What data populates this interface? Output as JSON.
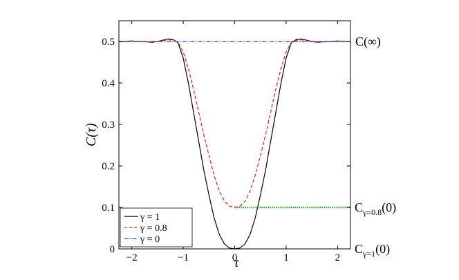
{
  "chart_data": {
    "type": "line",
    "xlabel": "τ",
    "ylabel": "C(τ)",
    "xlim": [
      -2.25,
      2.25
    ],
    "ylim": [
      0,
      0.55
    ],
    "xticks": [
      -2,
      -1,
      0,
      1,
      2
    ],
    "yticks": [
      0,
      0.1,
      0.2,
      0.3,
      0.4,
      0.5
    ],
    "grid": false,
    "legend_position": "bottom-left",
    "legend": [
      "γ = 1",
      "γ = 0.8",
      "γ = 0"
    ],
    "annotations": {
      "top": "C(∞)",
      "mid_main": "C",
      "mid_sub": "γ=0.8",
      "mid_tail": "(0)",
      "bottom_main": "C",
      "bottom_sub": "γ=1",
      "bottom_tail": "(0)"
    },
    "series": [
      {
        "name": "γ = 1",
        "style": "solid",
        "color": "#000000",
        "x": [
          -2.25,
          -2.0,
          -1.8,
          -1.7,
          -1.6,
          -1.5,
          -1.4,
          -1.3,
          -1.2,
          -1.1,
          -1.0,
          -0.9,
          -0.8,
          -0.7,
          -0.6,
          -0.5,
          -0.4,
          -0.3,
          -0.2,
          -0.1,
          0.0,
          0.1,
          0.2,
          0.3,
          0.4,
          0.5,
          0.6,
          0.7,
          0.8,
          0.9,
          1.0,
          1.1,
          1.2,
          1.3,
          1.4,
          1.5,
          1.6,
          1.7,
          1.8,
          2.0,
          2.25
        ],
        "y": [
          0.5,
          0.501,
          0.5,
          0.499,
          0.498,
          0.5,
          0.503,
          0.506,
          0.505,
          0.497,
          0.46,
          0.4,
          0.33,
          0.26,
          0.19,
          0.13,
          0.075,
          0.035,
          0.012,
          0.002,
          0.0,
          0.002,
          0.012,
          0.035,
          0.075,
          0.13,
          0.19,
          0.26,
          0.33,
          0.4,
          0.46,
          0.497,
          0.505,
          0.506,
          0.503,
          0.5,
          0.498,
          0.499,
          0.5,
          0.501,
          0.5
        ]
      },
      {
        "name": "γ = 0.8",
        "style": "dashed",
        "color": "#e41a1c",
        "x": [
          -2.25,
          -2.0,
          -1.8,
          -1.7,
          -1.6,
          -1.5,
          -1.4,
          -1.3,
          -1.2,
          -1.1,
          -1.0,
          -0.9,
          -0.8,
          -0.7,
          -0.6,
          -0.5,
          -0.4,
          -0.3,
          -0.2,
          -0.1,
          0.0,
          0.1,
          0.2,
          0.3,
          0.4,
          0.5,
          0.6,
          0.7,
          0.8,
          0.9,
          1.0,
          1.1,
          1.2,
          1.3,
          1.4,
          1.5,
          1.6,
          1.7,
          1.8,
          2.0,
          2.25
        ],
        "y": [
          0.5,
          0.501,
          0.5,
          0.499,
          0.499,
          0.5,
          0.502,
          0.504,
          0.503,
          0.498,
          0.475,
          0.435,
          0.385,
          0.33,
          0.275,
          0.225,
          0.178,
          0.14,
          0.115,
          0.103,
          0.1,
          0.103,
          0.115,
          0.14,
          0.178,
          0.225,
          0.275,
          0.33,
          0.385,
          0.435,
          0.475,
          0.498,
          0.503,
          0.504,
          0.502,
          0.5,
          0.499,
          0.499,
          0.5,
          0.501,
          0.5
        ]
      },
      {
        "name": "γ = 0",
        "style": "dashdot",
        "color": "#1f3fe0",
        "x": [
          -2.25,
          2.25
        ],
        "y": [
          0.5,
          0.5
        ]
      },
      {
        "name": "",
        "style": "dotted",
        "color": "#2ca02c",
        "x": [
          0,
          2.25
        ],
        "y": [
          0.1,
          0.1
        ]
      }
    ]
  }
}
